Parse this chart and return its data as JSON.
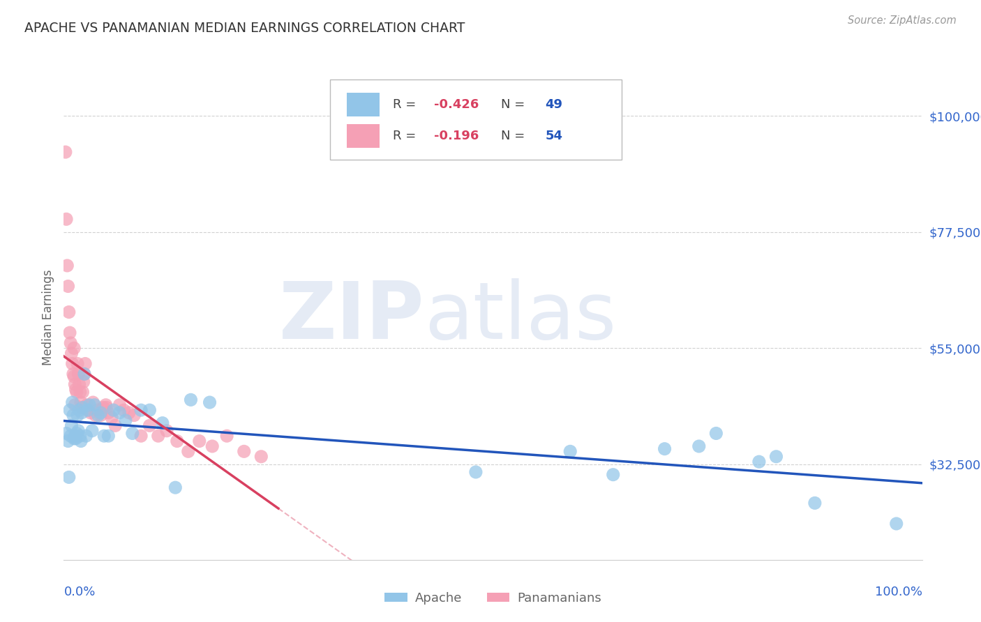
{
  "title": "APACHE VS PANAMANIAN MEDIAN EARNINGS CORRELATION CHART",
  "source": "Source: ZipAtlas.com",
  "ylabel": "Median Earnings",
  "ytick_labels": [
    "$32,500",
    "$55,000",
    "$77,500",
    "$100,000"
  ],
  "ytick_values": [
    32500,
    55000,
    77500,
    100000
  ],
  "ylim": [
    14000,
    108000
  ],
  "xlim": [
    0.0,
    1.0
  ],
  "apache_color": "#92C5E8",
  "panamanian_color": "#F5A0B5",
  "apache_line_color": "#2255BB",
  "panamanian_line_color": "#D84060",
  "apache_scatter_x": [
    0.003,
    0.005,
    0.006,
    0.007,
    0.008,
    0.009,
    0.01,
    0.011,
    0.012,
    0.013,
    0.014,
    0.015,
    0.016,
    0.017,
    0.018,
    0.019,
    0.02,
    0.021,
    0.022,
    0.024,
    0.026,
    0.028,
    0.03,
    0.033,
    0.036,
    0.04,
    0.043,
    0.047,
    0.052,
    0.058,
    0.065,
    0.072,
    0.08,
    0.09,
    0.1,
    0.115,
    0.13,
    0.148,
    0.17,
    0.48,
    0.59,
    0.64,
    0.7,
    0.74,
    0.76,
    0.81,
    0.83,
    0.875,
    0.97
  ],
  "apache_scatter_y": [
    38500,
    37000,
    30000,
    43000,
    38000,
    40000,
    44500,
    42000,
    37500,
    38000,
    37500,
    38500,
    42000,
    39000,
    43000,
    38000,
    37000,
    42500,
    43500,
    50000,
    38000,
    43000,
    44000,
    39000,
    44000,
    42000,
    42500,
    38000,
    38000,
    43000,
    42500,
    41000,
    38500,
    43000,
    43000,
    40500,
    28000,
    45000,
    44500,
    31000,
    35000,
    30500,
    35500,
    36000,
    38500,
    33000,
    34000,
    25000,
    21000
  ],
  "panamanian_scatter_x": [
    0.002,
    0.003,
    0.004,
    0.005,
    0.006,
    0.007,
    0.008,
    0.009,
    0.01,
    0.011,
    0.012,
    0.013,
    0.014,
    0.015,
    0.016,
    0.017,
    0.018,
    0.019,
    0.02,
    0.021,
    0.022,
    0.023,
    0.024,
    0.025,
    0.027,
    0.029,
    0.031,
    0.034,
    0.037,
    0.04,
    0.043,
    0.046,
    0.049,
    0.052,
    0.056,
    0.06,
    0.065,
    0.07,
    0.076,
    0.082,
    0.09,
    0.1,
    0.11,
    0.12,
    0.132,
    0.145,
    0.158,
    0.173,
    0.19,
    0.21,
    0.23,
    0.012,
    0.013,
    0.05
  ],
  "panamanian_scatter_y": [
    93000,
    80000,
    71000,
    67000,
    62000,
    58000,
    56000,
    54000,
    52000,
    50000,
    49500,
    48000,
    47000,
    46500,
    52000,
    50000,
    48000,
    46500,
    44500,
    43500,
    46500,
    48500,
    50000,
    52000,
    44000,
    43000,
    42500,
    44500,
    42000,
    43000,
    42000,
    43500,
    44000,
    42500,
    41500,
    40000,
    44000,
    43000,
    42500,
    42000,
    38000,
    40000,
    38000,
    39000,
    37000,
    35000,
    37000,
    36000,
    38000,
    35000,
    34000,
    55000,
    44000,
    43500
  ],
  "legend_R_color": "#D84060",
  "legend_N_color": "#2255BB",
  "legend_text_color": "#444444",
  "title_color": "#333333",
  "source_color": "#999999",
  "ylabel_color": "#666666",
  "axis_label_color": "#3366CC",
  "grid_color": "#CCCCCC",
  "watermark_color": "#E5EBF5"
}
